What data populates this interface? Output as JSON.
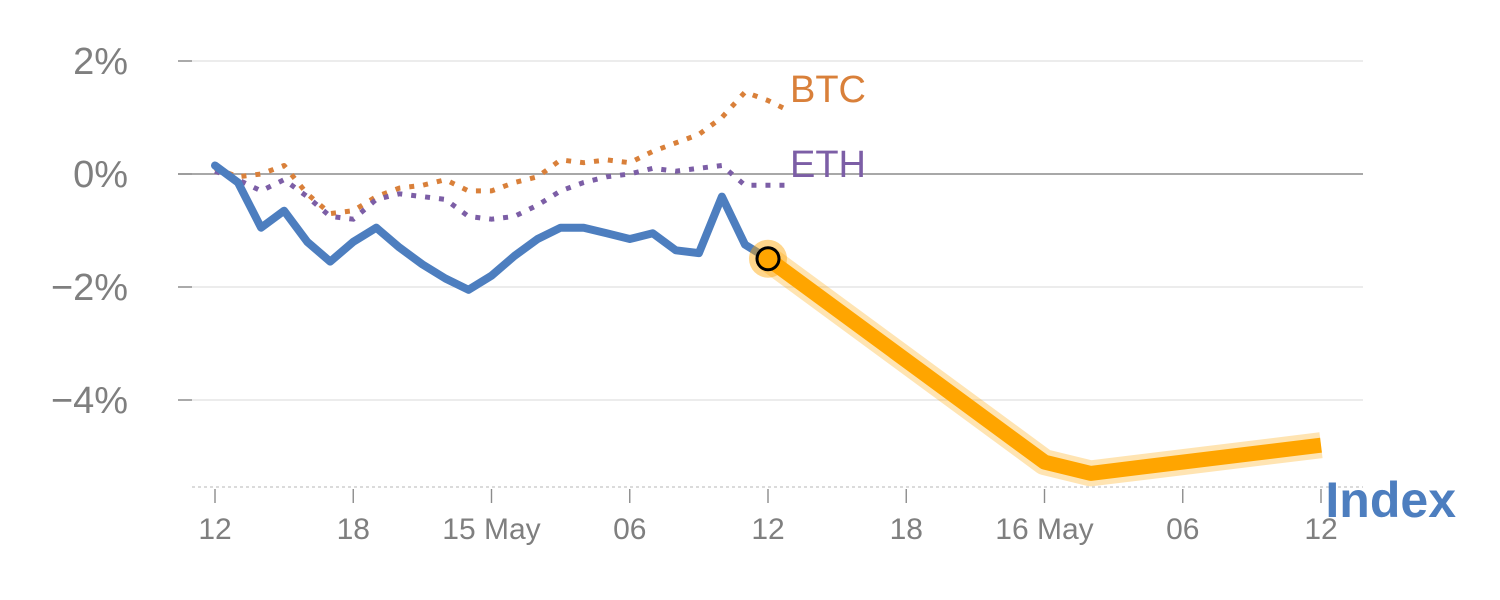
{
  "chart_data": {
    "type": "line",
    "title": "",
    "xlabel": "",
    "ylabel": "",
    "x_ticks": [
      "12",
      "18",
      "15 May",
      "06",
      "12",
      "18",
      "16 May",
      "06",
      "12"
    ],
    "x_range": [
      0,
      48
    ],
    "y_ticks": [
      {
        "value": 2,
        "label": "2%"
      },
      {
        "value": 0,
        "label": "0%"
      },
      {
        "value": -2,
        "label": "−2%"
      },
      {
        "value": -4,
        "label": "−4%"
      }
    ],
    "ylim": [
      -5.5,
      2.3
    ],
    "grid": true,
    "legend": "inline-labels",
    "series": [
      {
        "name": "BTC",
        "color": "#d9803a",
        "style": "dotted",
        "x": [
          0,
          1,
          2,
          3,
          4,
          5,
          6,
          7,
          8,
          9,
          10,
          11,
          12,
          13,
          14,
          15,
          16,
          17,
          18,
          19,
          20,
          21,
          22,
          23,
          24,
          25,
          26
        ],
        "y": [
          0.1,
          -0.05,
          0.0,
          0.15,
          -0.35,
          -0.7,
          -0.65,
          -0.4,
          -0.25,
          -0.2,
          -0.1,
          -0.3,
          -0.3,
          -0.15,
          -0.05,
          0.25,
          0.2,
          0.25,
          0.2,
          0.4,
          0.55,
          0.7,
          1.0,
          1.45,
          1.3,
          1.1,
          null
        ]
      },
      {
        "name": "ETH",
        "color": "#7c5ea6",
        "style": "dotted",
        "x": [
          0,
          1,
          2,
          3,
          4,
          5,
          6,
          7,
          8,
          9,
          10,
          11,
          12,
          13,
          14,
          15,
          16,
          17,
          18,
          19,
          20,
          21,
          22,
          23,
          24,
          25
        ],
        "y": [
          0.05,
          -0.1,
          -0.3,
          -0.1,
          -0.4,
          -0.75,
          -0.8,
          -0.45,
          -0.35,
          -0.4,
          -0.45,
          -0.75,
          -0.8,
          -0.75,
          -0.55,
          -0.3,
          -0.15,
          -0.05,
          0.0,
          0.1,
          0.05,
          0.1,
          0.15,
          -0.2,
          -0.2,
          -0.2
        ]
      },
      {
        "name": "Index",
        "color": "#4d7ebf",
        "style": "solid",
        "x": [
          0,
          1,
          2,
          3,
          4,
          5,
          6,
          7,
          8,
          9,
          10,
          11,
          12,
          13,
          14,
          15,
          16,
          17,
          18,
          19,
          20,
          21,
          22,
          23,
          24
        ],
        "y": [
          0.15,
          -0.15,
          -0.95,
          -0.65,
          -1.2,
          -1.55,
          -1.2,
          -0.95,
          -1.3,
          -1.6,
          -1.85,
          -2.05,
          -1.8,
          -1.45,
          -1.15,
          -0.95,
          -0.95,
          -1.05,
          -1.15,
          -1.05,
          -1.35,
          -1.4,
          -0.4,
          -1.25,
          -1.5
        ]
      },
      {
        "name": "",
        "color": "#ffa500",
        "style": "projection",
        "x": [
          24,
          36,
          38,
          48
        ],
        "y": [
          -1.5,
          -5.1,
          -5.3,
          -4.8
        ]
      }
    ],
    "highlight_point": {
      "x": 24,
      "y": -1.5,
      "color": "#ffa500"
    },
    "labels": {
      "btc": "BTC",
      "eth": "ETH",
      "index": "Index"
    }
  }
}
